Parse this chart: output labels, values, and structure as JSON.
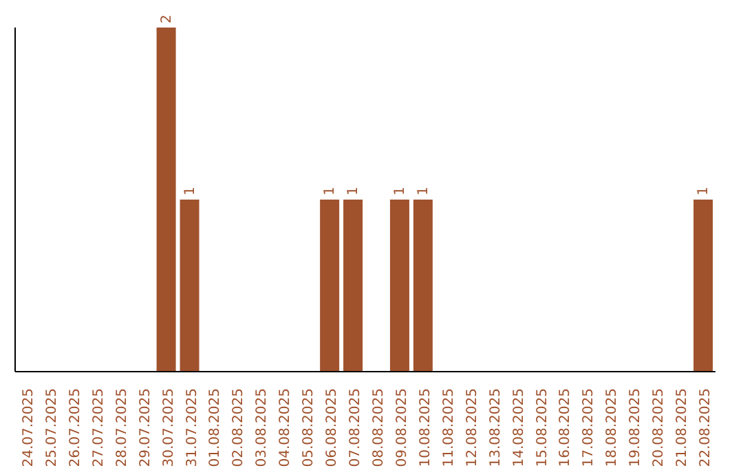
{
  "chart_data": {
    "type": "bar",
    "categories": [
      "24.07.2025",
      "25.07.2025",
      "26.07.2025",
      "27.07.2025",
      "28.07.2025",
      "29.07.2025",
      "30.07.2025",
      "31.07.2025",
      "01.08.2025",
      "02.08.2025",
      "03.08.2025",
      "04.08.2025",
      "05.08.2025",
      "06.08.2025",
      "07.08.2025",
      "08.08.2025",
      "09.08.2025",
      "10.08.2025",
      "11.08.2025",
      "12.08.2025",
      "13.08.2025",
      "14.08.2025",
      "15.08.2025",
      "16.08.2025",
      "17.08.2025",
      "18.08.2025",
      "19.08.2025",
      "20.08.2025",
      "21.08.2025",
      "22.08.2025"
    ],
    "values": [
      0,
      0,
      0,
      0,
      0,
      0,
      2,
      1,
      0,
      0,
      0,
      0,
      0,
      1,
      1,
      0,
      1,
      1,
      0,
      0,
      0,
      0,
      0,
      0,
      0,
      0,
      0,
      0,
      0,
      1
    ],
    "value_labels": [
      null,
      null,
      null,
      null,
      null,
      null,
      "2",
      "1",
      null,
      null,
      null,
      null,
      null,
      "1",
      "1",
      null,
      "1",
      "1",
      null,
      null,
      null,
      null,
      null,
      null,
      null,
      null,
      null,
      null,
      null,
      "1"
    ],
    "color": "#a0522d",
    "grid": false
  }
}
